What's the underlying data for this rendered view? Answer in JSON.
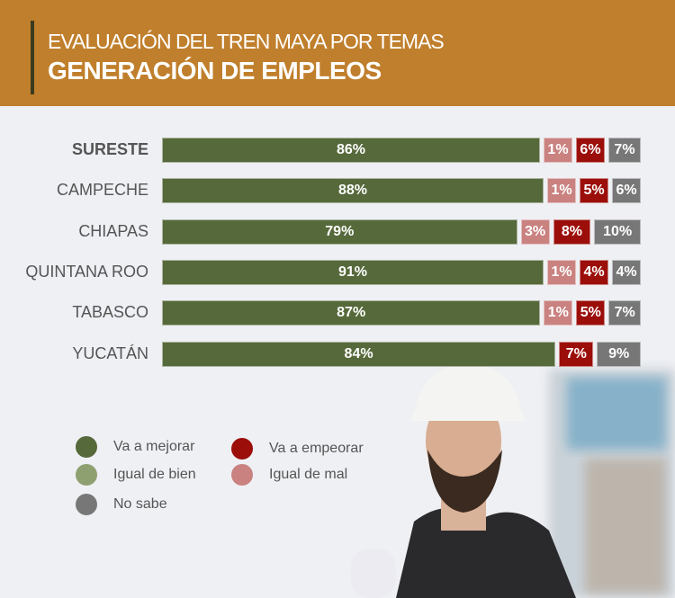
{
  "header": {
    "subtitle": "EVALUACIÓN DEL TREN MAYA POR TEMAS",
    "title": "GENERACIÓN DE EMPLEOS"
  },
  "chart_data": {
    "type": "bar",
    "stacked": true,
    "orientation": "horizontal",
    "title": "GENERACIÓN DE EMPLEOS",
    "categories": [
      "SURESTE",
      "CAMPECHE",
      "CHIAPAS",
      "QUINTANA ROO",
      "TABASCO",
      "YUCATÁN"
    ],
    "series": [
      {
        "name": "Va a mejorar",
        "color": "#56693a",
        "values": [
          86,
          88,
          79,
          91,
          87,
          84
        ]
      },
      {
        "name": "Igual de bien",
        "color": "#8fa070",
        "values": [
          0,
          0,
          0,
          0,
          0,
          0
        ]
      },
      {
        "name": "Igual de mal",
        "color": "#c98280",
        "values": [
          1,
          1,
          3,
          1,
          1,
          0
        ]
      },
      {
        "name": "Va a empeorar",
        "color": "#9b0e0a",
        "values": [
          6,
          5,
          8,
          4,
          5,
          7
        ]
      },
      {
        "name": "No sabe",
        "color": "#777777",
        "values": [
          7,
          6,
          10,
          4,
          7,
          9
        ]
      }
    ],
    "xlim": [
      0,
      100
    ],
    "legend_position": "bottom-left"
  },
  "legend": [
    {
      "label": "Va a mejorar",
      "color": "#56693a"
    },
    {
      "label": "Igual de bien",
      "color": "#8fa070"
    },
    {
      "label": "No sabe",
      "color": "#777777"
    },
    {
      "label": "Va a empeorar",
      "color": "#9b0e0a"
    },
    {
      "label": "Igual de mal",
      "color": "#c98280"
    }
  ]
}
